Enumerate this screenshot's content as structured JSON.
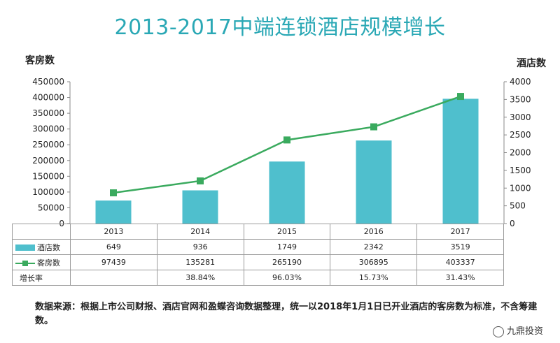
{
  "chart_data": {
    "type": "bar+line",
    "title": "2013-2017中端连锁酒店规模增长",
    "categories": [
      "2013",
      "2014",
      "2015",
      "2016",
      "2017"
    ],
    "left_axis": {
      "label": "客房数",
      "min": 0,
      "max": 450000,
      "ticks": [
        "0",
        "50000",
        "100000",
        "150000",
        "200000",
        "250000",
        "300000",
        "350000",
        "400000",
        "450000"
      ]
    },
    "right_axis": {
      "label": "酒店数",
      "min": 0,
      "max": 4000,
      "ticks": [
        "0",
        "500",
        "1000",
        "1500",
        "2000",
        "2500",
        "3000",
        "3500",
        "4000"
      ]
    },
    "series": [
      {
        "name": "酒店数",
        "type": "bar",
        "axis": "right",
        "color": "#4fbfcd",
        "values": [
          649,
          936,
          1749,
          2342,
          3519
        ],
        "labels": [
          "649",
          "936",
          "1749",
          "2342",
          "3519"
        ]
      },
      {
        "name": "客房数",
        "type": "line",
        "axis": "left",
        "color": "#3aaa5e",
        "values": [
          97439,
          135281,
          265190,
          306895,
          403337
        ],
        "labels": [
          "97439",
          "135281",
          "265190",
          "306895",
          "403337"
        ]
      }
    ],
    "growth_row": {
      "name": "增长率",
      "values": [
        "",
        "38.84%",
        "96.03%",
        "15.73%",
        "31.43%"
      ]
    }
  },
  "footnote": "数据来源：根据上市公司财报、酒店官网和盈蝶咨询数据整理，统一以2018年1月1日已开业酒店的客房数为标准，不含筹建数。",
  "watermark": "九鼎投资"
}
